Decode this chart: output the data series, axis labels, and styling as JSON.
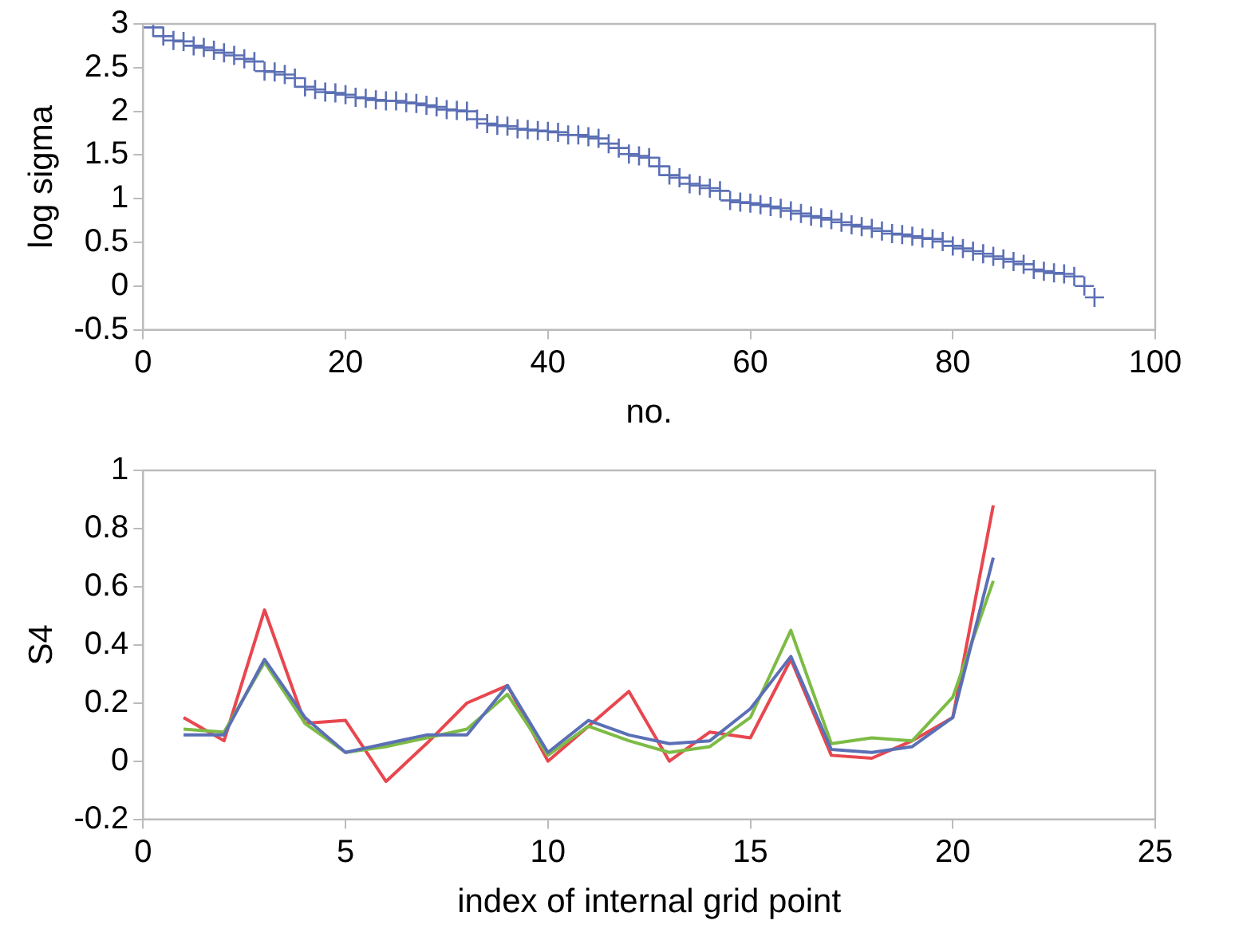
{
  "chart_data": [
    {
      "type": "scatter",
      "ylabel": "log sigma",
      "xlabel": "no.",
      "color": "#5b6fb5",
      "marker": "cross",
      "grid": false,
      "x": [
        1,
        2,
        3,
        4,
        5,
        6,
        7,
        8,
        9,
        10,
        11,
        12,
        13,
        14,
        15,
        16,
        17,
        18,
        19,
        20,
        21,
        22,
        23,
        24,
        25,
        26,
        27,
        28,
        29,
        30,
        31,
        32,
        33,
        34,
        35,
        36,
        37,
        38,
        39,
        40,
        41,
        42,
        43,
        44,
        45,
        46,
        47,
        48,
        49,
        50,
        51,
        52,
        53,
        54,
        55,
        56,
        57,
        58,
        59,
        60,
        61,
        62,
        63,
        64,
        65,
        66,
        67,
        68,
        69,
        70,
        71,
        72,
        73,
        74,
        75,
        76,
        77,
        78,
        79,
        80,
        81,
        82,
        83,
        84,
        85,
        86,
        87,
        88,
        89,
        90,
        91,
        92,
        93,
        94
      ],
      "values": [
        2.96,
        2.86,
        2.81,
        2.8,
        2.75,
        2.73,
        2.7,
        2.67,
        2.64,
        2.6,
        2.57,
        2.46,
        2.45,
        2.42,
        2.38,
        2.28,
        2.25,
        2.22,
        2.21,
        2.19,
        2.16,
        2.15,
        2.13,
        2.12,
        2.12,
        2.1,
        2.09,
        2.07,
        2.05,
        2.02,
        2.01,
        2,
        1.91,
        1.86,
        1.84,
        1.83,
        1.8,
        1.79,
        1.78,
        1.77,
        1.76,
        1.73,
        1.73,
        1.71,
        1.69,
        1.63,
        1.58,
        1.51,
        1.49,
        1.47,
        1.37,
        1.27,
        1.24,
        1.17,
        1.15,
        1.12,
        1.09,
        0.98,
        0.96,
        0.95,
        0.93,
        0.91,
        0.89,
        0.86,
        0.83,
        0.8,
        0.78,
        0.76,
        0.73,
        0.7,
        0.68,
        0.66,
        0.63,
        0.6,
        0.59,
        0.57,
        0.55,
        0.54,
        0.51,
        0.46,
        0.43,
        0.4,
        0.37,
        0.34,
        0.31,
        0.28,
        0.25,
        0.19,
        0.17,
        0.15,
        0.14,
        0.11,
        0,
        -0.13
      ],
      "xlim": [
        0,
        100
      ],
      "xticks": [
        0,
        20,
        40,
        60,
        80,
        100
      ],
      "ylim": [
        -0.5,
        3
      ],
      "yticks": [
        -0.5,
        0,
        0.5,
        1,
        1.5,
        2,
        2.5,
        3
      ]
    },
    {
      "type": "line",
      "ylabel": "S4",
      "xlabel": "index of internal grid point",
      "marker": "none",
      "grid": false,
      "x": [
        1,
        2,
        3,
        4,
        5,
        6,
        7,
        8,
        9,
        10,
        11,
        12,
        13,
        14,
        15,
        16,
        17,
        18,
        19,
        20,
        21
      ],
      "series": [
        {
          "color": "#5b6fb5",
          "values": [
            0.09,
            0.09,
            0.35,
            0.15,
            0.03,
            0.06,
            0.09,
            0.09,
            0.26,
            0.03,
            0.14,
            0.09,
            0.06,
            0.07,
            0.18,
            0.36,
            0.04,
            0.03,
            0.05,
            0.15,
            0.7
          ]
        },
        {
          "color": "#7dbb45",
          "values": [
            0.11,
            0.1,
            0.34,
            0.13,
            0.03,
            0.05,
            0.08,
            0.11,
            0.23,
            0.02,
            0.12,
            0.07,
            0.03,
            0.05,
            0.15,
            0.45,
            0.06,
            0.08,
            0.07,
            0.22,
            0.62
          ]
        },
        {
          "color": "#e8474f",
          "values": [
            0.15,
            0.07,
            0.52,
            0.13,
            0.14,
            -0.07,
            0.06,
            0.2,
            0.26,
            0,
            0.12,
            0.24,
            0,
            0.1,
            0.08,
            0.35,
            0.02,
            0.01,
            0.07,
            0.15,
            0.88
          ]
        }
      ],
      "xlim": [
        0,
        25
      ],
      "xticks": [
        0,
        5,
        10,
        15,
        20,
        25
      ],
      "ylim": [
        -0.2,
        1
      ],
      "yticks": [
        -0.2,
        0,
        0.2,
        0.4,
        0.6,
        0.8,
        1
      ]
    }
  ]
}
